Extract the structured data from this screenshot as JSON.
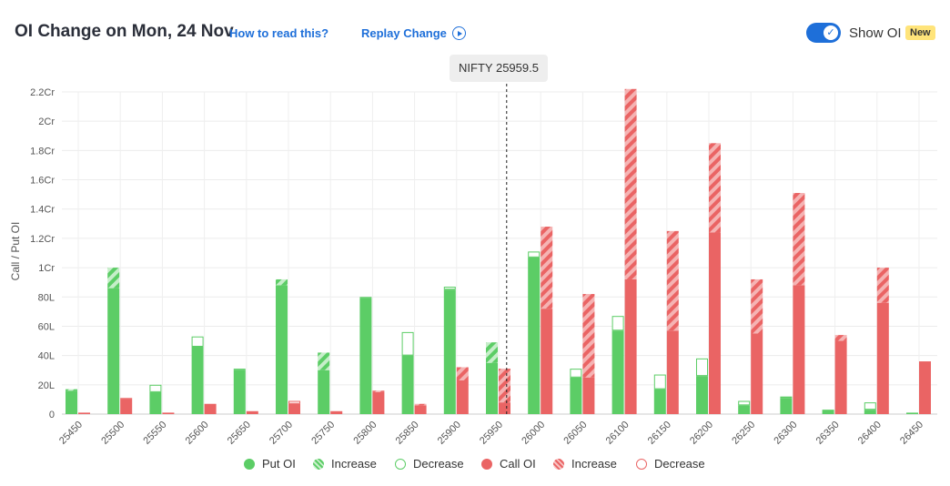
{
  "header": {
    "title": "OI Change on Mon, 24 Nov",
    "how_to_read": "How to read this?",
    "replay": "Replay Change",
    "toggle_label": "Show OI",
    "badge": "New"
  },
  "tooltip": "NIFTY 25959.5",
  "colors": {
    "put": "#5ccd66",
    "put_light": "#c6eec9",
    "call": "#ea6464",
    "call_light": "#f5b3b3",
    "accent": "#1e6fd9"
  },
  "chart_data": {
    "type": "bar",
    "ylabel": "Call / Put OI",
    "y_ticks": [
      "0",
      "20L",
      "40L",
      "60L",
      "80L",
      "1Cr",
      "1.2Cr",
      "1.4Cr",
      "1.6Cr",
      "1.8Cr",
      "2Cr",
      "2.2Cr"
    ],
    "ylim": [
      0,
      220
    ],
    "unit": "Lakh",
    "spot_label": "NIFTY 25959.5",
    "spot_value": 25959.5,
    "categories": [
      "25450",
      "25500",
      "25550",
      "25600",
      "25650",
      "25700",
      "25750",
      "25800",
      "25850",
      "25900",
      "25950",
      "26000",
      "26050",
      "26100",
      "26150",
      "26200",
      "26250",
      "26300",
      "26350",
      "26400",
      "26450"
    ],
    "series": [
      {
        "name": "Put OI",
        "kind": "put",
        "current": [
          17,
          100,
          15,
          46,
          30,
          92,
          42,
          79,
          40,
          85,
          49,
          107,
          25,
          57,
          17,
          26,
          6,
          11,
          3,
          3,
          1
        ],
        "previous": [
          16,
          86,
          20,
          53,
          31,
          88,
          30,
          80,
          56,
          87,
          35,
          111,
          31,
          67,
          27,
          38,
          9,
          12,
          3,
          8,
          1
        ]
      },
      {
        "name": "Call OI",
        "kind": "call",
        "current": [
          1,
          10,
          1,
          7,
          2,
          7,
          2,
          16,
          7,
          32,
          31,
          128,
          82,
          222,
          125,
          185,
          92,
          151,
          54,
          100,
          36
        ],
        "previous": [
          1,
          11,
          1,
          7,
          2,
          9,
          2,
          15,
          6,
          23,
          8,
          72,
          25,
          92,
          57,
          124,
          55,
          88,
          50,
          76,
          36
        ]
      }
    ],
    "legend": [
      "Put OI",
      "Increase",
      "Decrease",
      "Call OI",
      "Increase",
      "Decrease"
    ],
    "grid": true
  }
}
